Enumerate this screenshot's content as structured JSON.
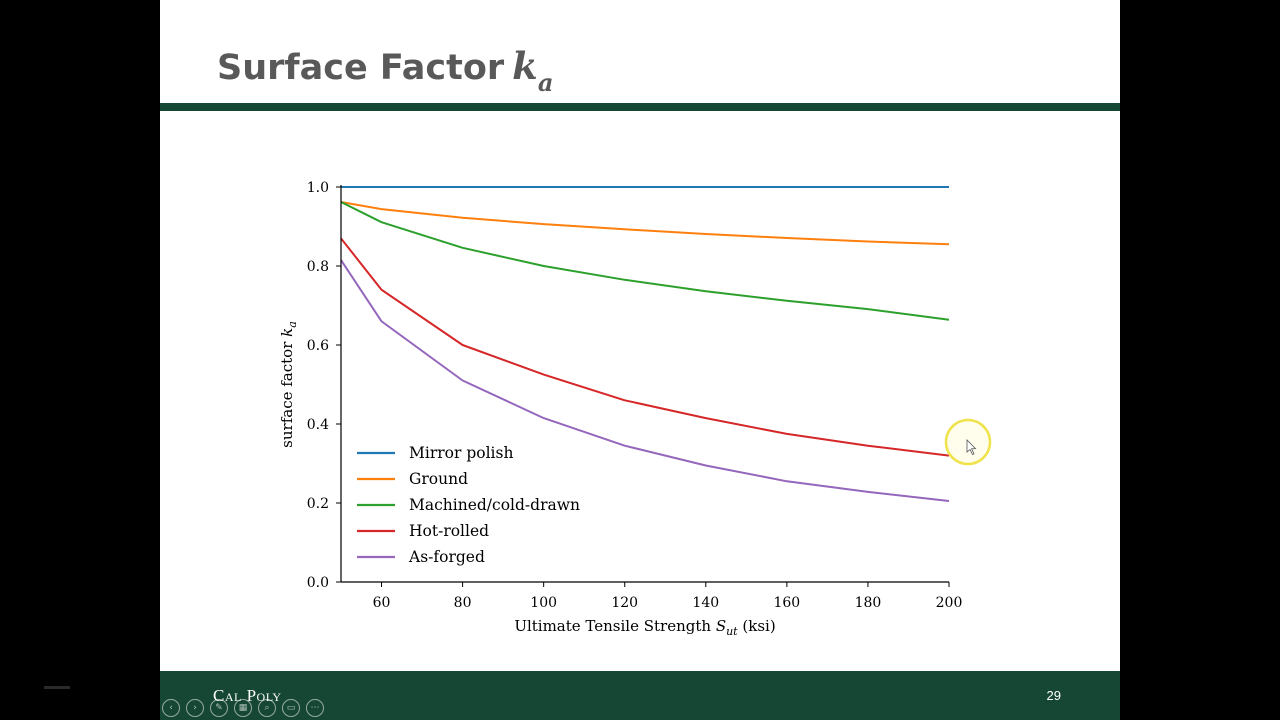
{
  "slide": {
    "title_text": "Surface Factor",
    "title_symbol": "k",
    "title_subscript": "a",
    "page_number": "29",
    "footer_brand": "Cal Poly"
  },
  "player_controls": [
    {
      "name": "previous-slide-button",
      "glyph": "‹"
    },
    {
      "name": "next-slide-button",
      "glyph": "›"
    },
    {
      "name": "pen-tool-button",
      "glyph": "✎"
    },
    {
      "name": "see-all-slides-button",
      "glyph": "▦"
    },
    {
      "name": "zoom-button",
      "glyph": "⌕"
    },
    {
      "name": "subtitles-button",
      "glyph": "▭"
    },
    {
      "name": "more-options-button",
      "glyph": "⋯"
    }
  ],
  "chart_data": {
    "type": "line",
    "xlabel": "Ultimate Tensile Strength S_ut (ksi)",
    "ylabel": "surface factor k_a",
    "xlim": [
      50,
      200
    ],
    "ylim": [
      0,
      1.0
    ],
    "xticks": [
      60,
      80,
      100,
      120,
      140,
      160,
      180,
      200
    ],
    "yticks": [
      "0.0",
      "0.2",
      "0.4",
      "0.6",
      "0.8",
      "1.0"
    ],
    "grid": false,
    "legend_position": "lower-left",
    "series": [
      {
        "name": "Mirror polish",
        "color": "#1f77b4",
        "x": [
          50,
          75,
          100,
          125,
          150,
          175,
          200
        ],
        "y": [
          1.0,
          1.0,
          1.0,
          1.0,
          1.0,
          1.0,
          1.0
        ]
      },
      {
        "name": "Ground",
        "color": "#ff7f0e",
        "x": [
          50,
          60,
          80,
          100,
          120,
          140,
          160,
          180,
          200
        ],
        "y": [
          0.962,
          0.944,
          0.922,
          0.906,
          0.893,
          0.881,
          0.871,
          0.862,
          0.855
        ]
      },
      {
        "name": "Machined/cold-drawn",
        "color": "#2ca02c",
        "x": [
          50,
          60,
          80,
          100,
          120,
          140,
          160,
          180,
          200
        ],
        "y": [
          0.962,
          0.911,
          0.846,
          0.8,
          0.765,
          0.736,
          0.712,
          0.691,
          0.664
        ]
      },
      {
        "name": "Hot-rolled",
        "color": "#d62728",
        "x": [
          50,
          60,
          80,
          100,
          120,
          140,
          160,
          180,
          200
        ],
        "y": [
          0.87,
          0.74,
          0.6,
          0.525,
          0.46,
          0.415,
          0.375,
          0.345,
          0.32
        ]
      },
      {
        "name": "As-forged",
        "color": "#9467bd",
        "x": [
          50,
          60,
          80,
          100,
          120,
          140,
          160,
          180,
          200
        ],
        "y": [
          0.815,
          0.66,
          0.51,
          0.415,
          0.345,
          0.295,
          0.255,
          0.228,
          0.205
        ]
      }
    ]
  }
}
